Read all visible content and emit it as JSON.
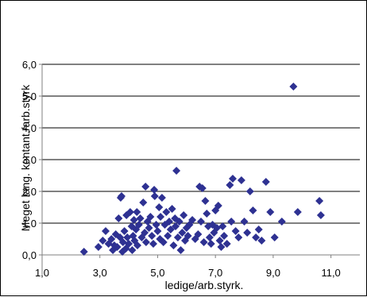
{
  "chart_data": {
    "type": "scatter",
    "title": "",
    "xlabel": "ledige/arb.styrk.",
    "ylabel": "Meget lang. kontant./arb.styrk",
    "xlim": [
      1.0,
      12.0
    ],
    "ylim": [
      0.0,
      6.0
    ],
    "xticks": [
      1.0,
      3.0,
      5.0,
      7.0,
      9.0,
      11.0
    ],
    "xtick_labels": [
      "1,0",
      "3,0",
      "5,0",
      "7,0",
      "9,0",
      "11,0"
    ],
    "yticks": [
      0.0,
      1.0,
      2.0,
      3.0,
      4.0,
      5.0,
      6.0
    ],
    "ytick_labels": [
      "0,0",
      "1,0",
      "2,0",
      "3,0",
      "4,0",
      "5,0",
      "6,0"
    ],
    "grid": "horizontal",
    "marker": "diamond",
    "color": "#2e3192",
    "points": [
      [
        2.45,
        0.1
      ],
      [
        2.95,
        0.25
      ],
      [
        3.1,
        0.45
      ],
      [
        3.2,
        0.75
      ],
      [
        3.3,
        0.35
      ],
      [
        3.4,
        0.5
      ],
      [
        3.45,
        0.15
      ],
      [
        3.5,
        0.3
      ],
      [
        3.55,
        0.65
      ],
      [
        3.6,
        0.25
      ],
      [
        3.65,
        1.15
      ],
      [
        3.7,
        0.55
      ],
      [
        3.72,
        1.8
      ],
      [
        3.75,
        1.85
      ],
      [
        3.78,
        0.1
      ],
      [
        3.8,
        0.4
      ],
      [
        3.85,
        0.75
      ],
      [
        3.9,
        0.2
      ],
      [
        3.92,
        1.25
      ],
      [
        3.95,
        0.55
      ],
      [
        4.0,
        0.35
      ],
      [
        4.05,
        1.35
      ],
      [
        4.1,
        0.9
      ],
      [
        4.12,
        0.15
      ],
      [
        4.15,
        0.6
      ],
      [
        4.18,
        1.1
      ],
      [
        4.2,
        0.45
      ],
      [
        4.25,
        0.8
      ],
      [
        4.28,
        1.35
      ],
      [
        4.3,
        0.3
      ],
      [
        4.35,
        0.95
      ],
      [
        4.4,
        1.15
      ],
      [
        4.45,
        0.55
      ],
      [
        4.5,
        1.65
      ],
      [
        4.55,
        0.7
      ],
      [
        4.58,
        2.15
      ],
      [
        4.6,
        0.4
      ],
      [
        4.65,
        1.05
      ],
      [
        4.7,
        0.85
      ],
      [
        4.75,
        1.2
      ],
      [
        4.8,
        0.6
      ],
      [
        4.85,
        0.35
      ],
      [
        4.88,
        2.05
      ],
      [
        4.9,
        1.85
      ],
      [
        4.95,
        0.95
      ],
      [
        5.0,
        0.75
      ],
      [
        5.05,
        1.5
      ],
      [
        5.08,
        0.5
      ],
      [
        5.1,
        1.2
      ],
      [
        5.15,
        1.8
      ],
      [
        5.2,
        0.4
      ],
      [
        5.25,
        0.95
      ],
      [
        5.3,
        1.35
      ],
      [
        5.35,
        0.6
      ],
      [
        5.4,
        1.05
      ],
      [
        5.45,
        0.8
      ],
      [
        5.5,
        1.45
      ],
      [
        5.55,
        0.3
      ],
      [
        5.6,
        1.15
      ],
      [
        5.62,
        0.9
      ],
      [
        5.65,
        2.65
      ],
      [
        5.7,
        0.55
      ],
      [
        5.75,
        1.05
      ],
      [
        5.8,
        0.15
      ],
      [
        5.85,
        0.7
      ],
      [
        5.9,
        1.25
      ],
      [
        5.95,
        0.45
      ],
      [
        6.0,
        0.85
      ],
      [
        6.05,
        0.6
      ],
      [
        6.1,
        0.95
      ],
      [
        6.2,
        1.1
      ],
      [
        6.3,
        0.5
      ],
      [
        6.4,
        0.65
      ],
      [
        6.45,
        2.15
      ],
      [
        6.5,
        1.05
      ],
      [
        6.55,
        2.1
      ],
      [
        6.6,
        0.4
      ],
      [
        6.65,
        1.7
      ],
      [
        6.7,
        1.3
      ],
      [
        6.75,
        0.9
      ],
      [
        6.8,
        0.55
      ],
      [
        6.85,
        0.35
      ],
      [
        6.9,
        0.95
      ],
      [
        6.95,
        0.7
      ],
      [
        7.0,
        1.4
      ],
      [
        7.05,
        0.85
      ],
      [
        7.1,
        1.55
      ],
      [
        7.15,
        0.45
      ],
      [
        7.2,
        0.25
      ],
      [
        7.25,
        0.9
      ],
      [
        7.3,
        0.6
      ],
      [
        7.4,
        0.35
      ],
      [
        7.5,
        2.2
      ],
      [
        7.55,
        1.05
      ],
      [
        7.6,
        2.4
      ],
      [
        7.7,
        0.75
      ],
      [
        7.8,
        0.55
      ],
      [
        7.9,
        2.35
      ],
      [
        8.0,
        1.05
      ],
      [
        8.1,
        0.7
      ],
      [
        8.2,
        2.0
      ],
      [
        8.3,
        1.4
      ],
      [
        8.4,
        0.55
      ],
      [
        8.5,
        0.8
      ],
      [
        8.6,
        0.45
      ],
      [
        8.75,
        2.3
      ],
      [
        8.9,
        1.35
      ],
      [
        9.05,
        0.55
      ],
      [
        9.3,
        1.05
      ],
      [
        9.7,
        5.3
      ],
      [
        9.85,
        1.35
      ],
      [
        10.6,
        1.7
      ],
      [
        10.65,
        1.25
      ]
    ]
  }
}
